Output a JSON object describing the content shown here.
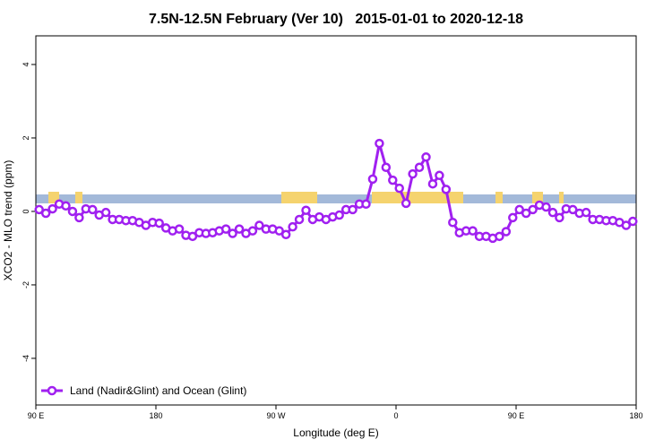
{
  "chart_data": {
    "type": "line",
    "title": "7.5N-12.5N February (Ver 10)   2015-01-01 to 2020-12-18",
    "x_label": "Longitude (deg E)",
    "y_label": "XCO2 - MLO trend (ppm)",
    "xlim": [
      90,
      540
    ],
    "ylim": [
      -5.27,
      4.78
    ],
    "xticks": [
      {
        "value": 90,
        "label": "90 E"
      },
      {
        "value": 180,
        "label": "180"
      },
      {
        "value": 270,
        "label": "90 W"
      },
      {
        "value": 360,
        "label": "0"
      },
      {
        "value": 450,
        "label": "90 E"
      },
      {
        "value": 540,
        "label": "180"
      }
    ],
    "yticks": [
      -4,
      -2,
      0,
      2,
      4
    ],
    "legend_position": "bottom left",
    "x": [
      92.5,
      97.5,
      102.5,
      107.5,
      112.5,
      117.5,
      122.5,
      127.5,
      132.5,
      137.5,
      142.5,
      147.5,
      152.5,
      157.5,
      162.5,
      167.5,
      172.5,
      177.5,
      182.5,
      187.5,
      192.5,
      197.5,
      202.5,
      207.5,
      212.5,
      217.5,
      222.5,
      227.5,
      232.5,
      237.5,
      242.5,
      247.5,
      252.5,
      257.5,
      262.5,
      267.5,
      272.5,
      277.5,
      282.5,
      287.5,
      292.5,
      297.5,
      302.5,
      307.5,
      312.5,
      317.5,
      322.5,
      327.5,
      332.5,
      337.5,
      342.5,
      347.5,
      352.5,
      357.5,
      362.5,
      367.5,
      372.5,
      377.5,
      382.5,
      387.5,
      392.5,
      397.5,
      402.5,
      407.5,
      412.5,
      417.5,
      422.5,
      427.5,
      432.5,
      437.5,
      442.5,
      447.5,
      452.5,
      457.5,
      462.5,
      467.5,
      472.5,
      477.5,
      482.5,
      487.5,
      492.5,
      497.5,
      502.5,
      507.5,
      512.5,
      517.5,
      522.5,
      527.5,
      532.5,
      537.5
    ],
    "series": [
      {
        "name": "Land (Nadir&Glint) and Ocean (Glint)",
        "color": "#a020f0",
        "values": [
          0.05,
          -0.05,
          0.07,
          0.2,
          0.15,
          0,
          -0.17,
          0.07,
          0.05,
          -0.1,
          -0.03,
          -0.22,
          -0.22,
          -0.25,
          -0.25,
          -0.3,
          -0.38,
          -0.3,
          -0.32,
          -0.45,
          -0.53,
          -0.48,
          -0.65,
          -0.68,
          -0.58,
          -0.6,
          -0.58,
          -0.53,
          -0.48,
          -0.6,
          -0.48,
          -0.6,
          -0.53,
          -0.38,
          -0.48,
          -0.48,
          -0.53,
          -0.63,
          -0.42,
          -0.22,
          0.03,
          -0.22,
          -0.15,
          -0.22,
          -0.15,
          -0.1,
          0.05,
          0.05,
          0.2,
          0.2,
          0.88,
          1.85,
          1.2,
          0.85,
          0.63,
          0.22,
          1.02,
          1.2,
          1.48,
          0.75,
          0.98,
          0.6,
          -0.3,
          -0.58,
          -0.53,
          -0.53,
          -0.68,
          -0.68,
          -0.73,
          -0.68,
          -0.55,
          -0.17,
          0.05,
          -0.05,
          0.05,
          0.17,
          0.12,
          -0.03,
          -0.17,
          0.07,
          0.05,
          -0.05,
          -0.03,
          -0.22,
          -0.22,
          -0.25,
          -0.25,
          -0.3,
          -0.38,
          -0.27
        ]
      }
    ]
  }
}
